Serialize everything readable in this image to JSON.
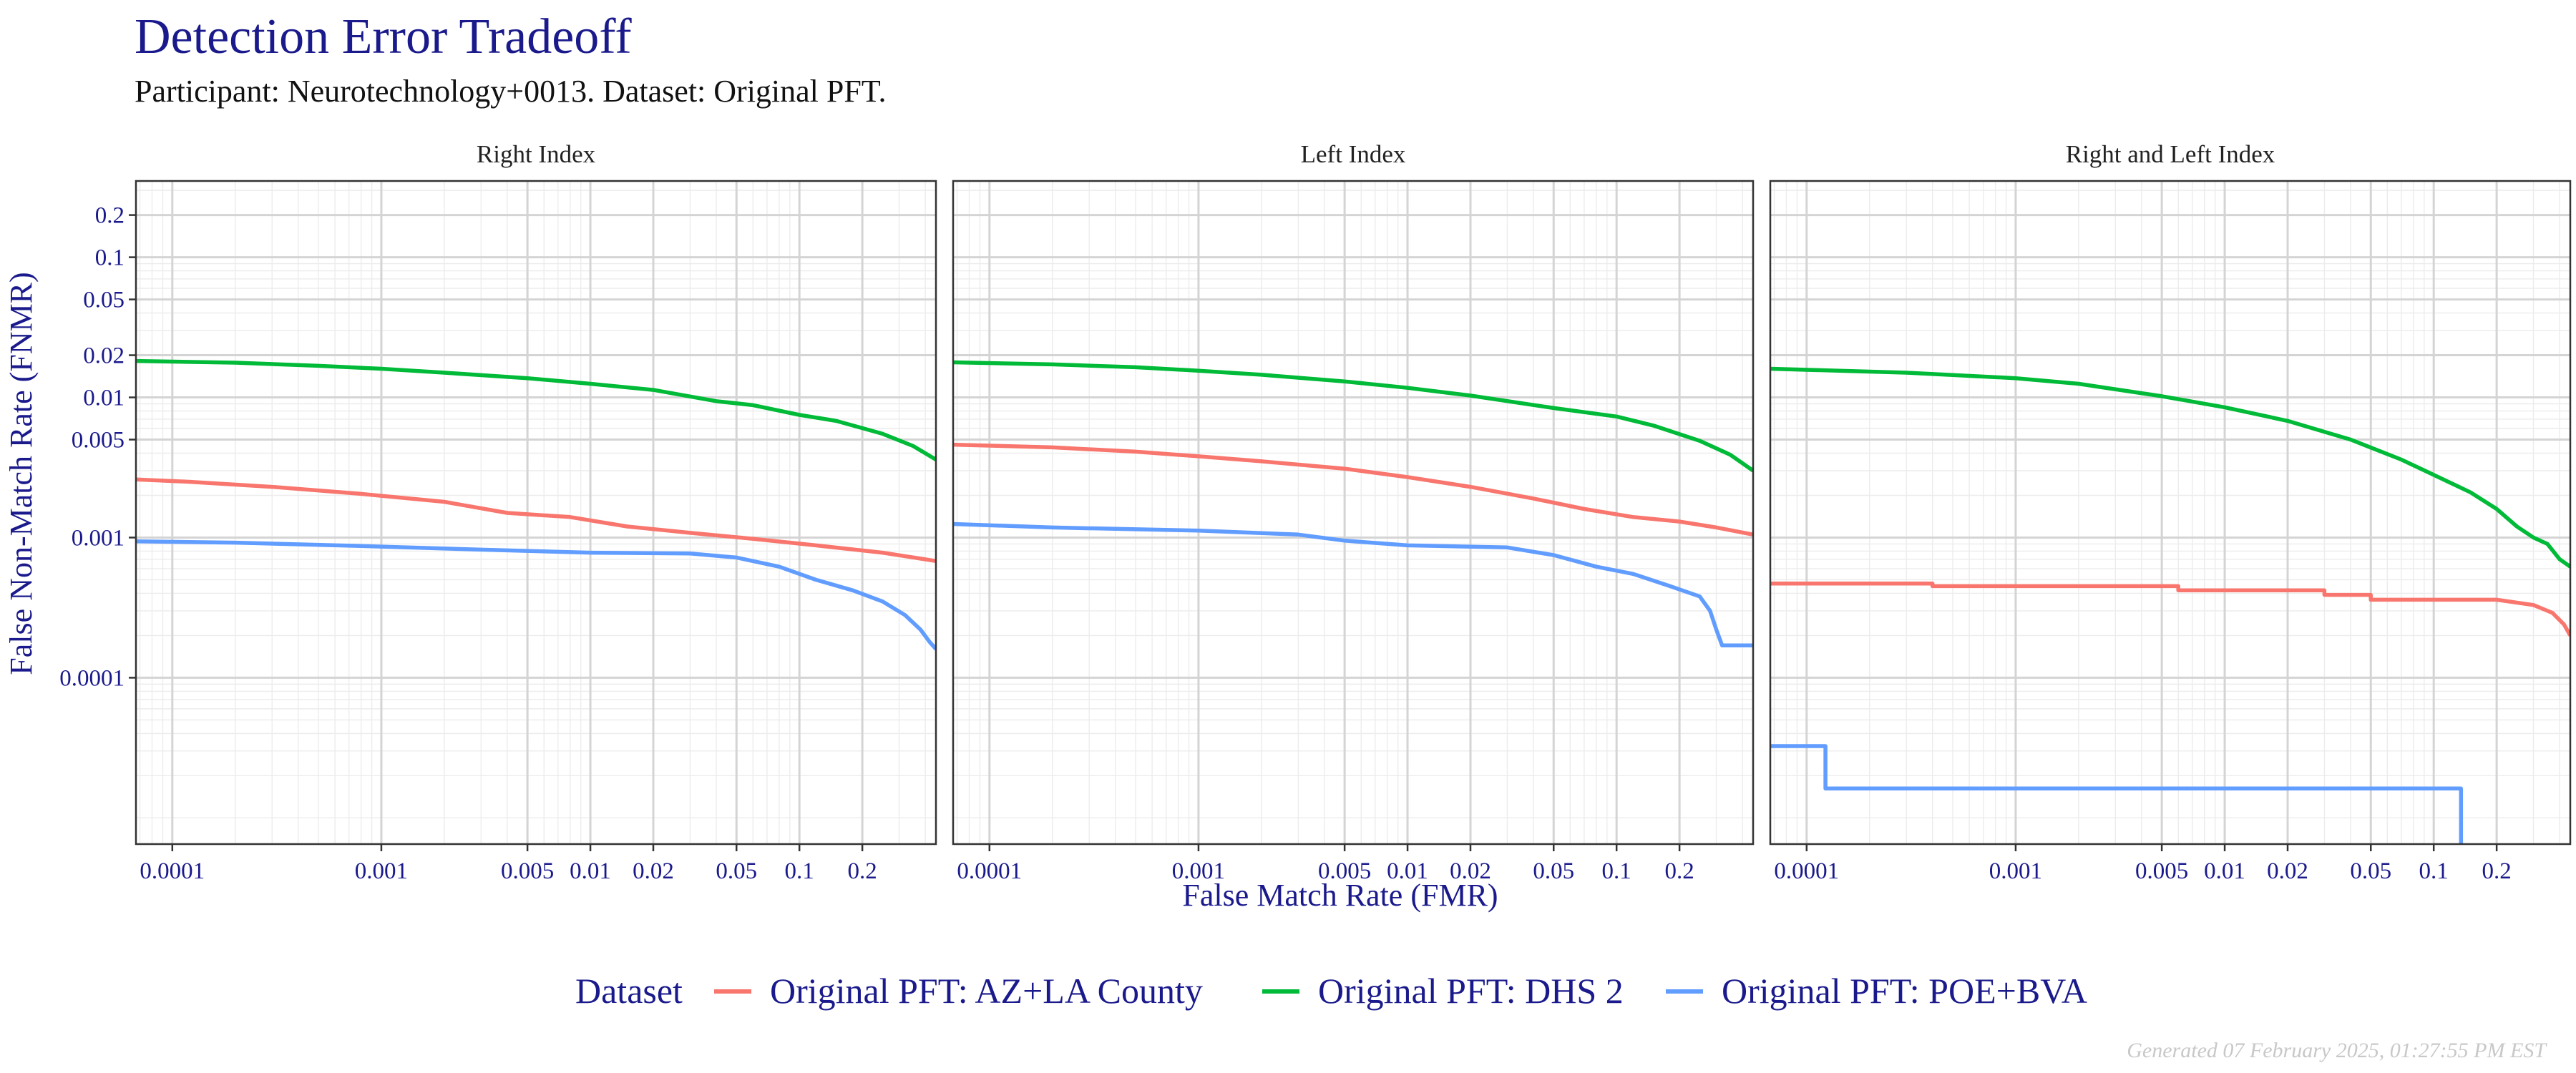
{
  "title": "Detection Error Tradeoff",
  "subtitle": "Participant: Neurotechnology+0013. Dataset: Original PFT.",
  "footer": "Generated 07 February 2025, 01:27:55 PM EST",
  "colors": {
    "title": "#1a1a8c",
    "AZ+LA County": "#F8766D",
    "DHS 2": "#00BA38",
    "POE+BVA": "#619CFF",
    "grid_major": "#d4d4d4",
    "grid_minor": "#ececec",
    "panel_border": "#333333"
  },
  "chart_data": {
    "type": "line",
    "xlabel": "False Match Rate (FMR)",
    "ylabel": "False Non-Match Rate (FNMR)",
    "x_scale": "log",
    "y_scale": "log",
    "xlim": [
      6.7e-05,
      0.45
    ],
    "ylim": [
      6.5e-06,
      0.35
    ],
    "x_ticks": [
      {
        "v": 0.0001,
        "label": "0.0001"
      },
      {
        "v": 0.001,
        "label": "0.001"
      },
      {
        "v": 0.005,
        "label": "0.005"
      },
      {
        "v": 0.01,
        "label": "0.01"
      },
      {
        "v": 0.02,
        "label": "0.02"
      },
      {
        "v": 0.05,
        "label": "0.05"
      },
      {
        "v": 0.1,
        "label": "0.1"
      },
      {
        "v": 0.2,
        "label": "0.2"
      }
    ],
    "y_ticks": [
      {
        "v": 0.0001,
        "label": "0.0001"
      },
      {
        "v": 0.001,
        "label": "0.001"
      },
      {
        "v": 0.005,
        "label": "0.005"
      },
      {
        "v": 0.01,
        "label": "0.01"
      },
      {
        "v": 0.02,
        "label": "0.02"
      },
      {
        "v": 0.05,
        "label": "0.05"
      },
      {
        "v": 0.1,
        "label": "0.1"
      },
      {
        "v": 0.2,
        "label": "0.2"
      }
    ],
    "grid": true,
    "legend": {
      "title": "Dataset",
      "position": "bottom"
    },
    "series_names": [
      "Original PFT: AZ+LA County",
      "Original PFT: DHS 2",
      "Original PFT: POE+BVA"
    ],
    "panels": [
      {
        "label": "Right Index",
        "series": [
          {
            "name": "Original PFT: AZ+LA County",
            "color_key": "AZ+LA County",
            "step": true,
            "points": [
              [
                6.7e-05,
                0.0026
              ],
              [
                0.00012,
                0.0025
              ],
              [
                0.0003,
                0.0023
              ],
              [
                0.0008,
                0.00205
              ],
              [
                0.002,
                0.0018
              ],
              [
                0.004,
                0.0015
              ],
              [
                0.008,
                0.0014
              ],
              [
                0.015,
                0.0012
              ],
              [
                0.03,
                0.00108
              ],
              [
                0.06,
                0.00098
              ],
              [
                0.12,
                0.00088
              ],
              [
                0.25,
                0.00078
              ],
              [
                0.45,
                0.00068
              ]
            ]
          },
          {
            "name": "Original PFT: DHS 2",
            "color_key": "DHS 2",
            "points": [
              [
                6.7e-05,
                0.0182
              ],
              [
                0.0002,
                0.0177
              ],
              [
                0.0005,
                0.0168
              ],
              [
                0.001,
                0.016
              ],
              [
                0.002,
                0.015
              ],
              [
                0.005,
                0.0137
              ],
              [
                0.01,
                0.0125
              ],
              [
                0.02,
                0.0113
              ],
              [
                0.04,
                0.0094
              ],
              [
                0.06,
                0.0088
              ],
              [
                0.1,
                0.0075
              ],
              [
                0.15,
                0.0068
              ],
              [
                0.25,
                0.0055
              ],
              [
                0.35,
                0.0045
              ],
              [
                0.45,
                0.0036
              ]
            ]
          },
          {
            "name": "Original PFT: POE+BVA",
            "color_key": "POE+BVA",
            "step": true,
            "points": [
              [
                6.7e-05,
                0.00094
              ],
              [
                0.0002,
                0.00092
              ],
              [
                0.0008,
                0.00087
              ],
              [
                0.003,
                0.00082
              ],
              [
                0.01,
                0.00078
              ],
              [
                0.03,
                0.00077
              ],
              [
                0.05,
                0.00072
              ],
              [
                0.08,
                0.00062
              ],
              [
                0.12,
                0.0005
              ],
              [
                0.18,
                0.00042
              ],
              [
                0.25,
                0.00035
              ],
              [
                0.32,
                0.00028
              ],
              [
                0.38,
                0.00022
              ],
              [
                0.42,
                0.00018
              ],
              [
                0.45,
                0.00016
              ]
            ]
          }
        ]
      },
      {
        "label": "Left Index",
        "series": [
          {
            "name": "Original PFT: AZ+LA County",
            "color_key": "AZ+LA County",
            "step": true,
            "points": [
              [
                6.7e-05,
                0.0046
              ],
              [
                0.0002,
                0.0044
              ],
              [
                0.0005,
                0.0041
              ],
              [
                0.001,
                0.0038
              ],
              [
                0.002,
                0.0035
              ],
              [
                0.005,
                0.0031
              ],
              [
                0.01,
                0.0027
              ],
              [
                0.02,
                0.0023
              ],
              [
                0.04,
                0.0019
              ],
              [
                0.07,
                0.0016
              ],
              [
                0.12,
                0.0014
              ],
              [
                0.2,
                0.0013
              ],
              [
                0.3,
                0.00118
              ],
              [
                0.45,
                0.00105
              ]
            ]
          },
          {
            "name": "Original PFT: DHS 2",
            "color_key": "DHS 2",
            "points": [
              [
                6.7e-05,
                0.0178
              ],
              [
                0.0002,
                0.0172
              ],
              [
                0.0005,
                0.0164
              ],
              [
                0.001,
                0.0155
              ],
              [
                0.002,
                0.0145
              ],
              [
                0.005,
                0.013
              ],
              [
                0.01,
                0.0117
              ],
              [
                0.02,
                0.0103
              ],
              [
                0.05,
                0.0084
              ],
              [
                0.1,
                0.0073
              ],
              [
                0.15,
                0.0063
              ],
              [
                0.25,
                0.0049
              ],
              [
                0.35,
                0.0039
              ],
              [
                0.45,
                0.003
              ]
            ]
          },
          {
            "name": "Original PFT: POE+BVA",
            "color_key": "POE+BVA",
            "step": true,
            "points": [
              [
                6.7e-05,
                0.00125
              ],
              [
                0.0002,
                0.00118
              ],
              [
                0.001,
                0.00112
              ],
              [
                0.003,
                0.00105
              ],
              [
                0.005,
                0.00095
              ],
              [
                0.01,
                0.00088
              ],
              [
                0.03,
                0.00085
              ],
              [
                0.05,
                0.00075
              ],
              [
                0.08,
                0.00062
              ],
              [
                0.12,
                0.00055
              ],
              [
                0.18,
                0.00045
              ],
              [
                0.25,
                0.00038
              ],
              [
                0.28,
                0.0003
              ],
              [
                0.3,
                0.00022
              ],
              [
                0.32,
                0.00017
              ],
              [
                0.45,
                0.00017
              ]
            ]
          }
        ]
      },
      {
        "label": "Right and Left Index",
        "series": [
          {
            "name": "Original PFT: AZ+LA County",
            "color_key": "AZ+LA County",
            "step": true,
            "points": [
              [
                6.7e-05,
                0.00047
              ],
              [
                0.0004,
                0.00047
              ],
              [
                0.0004,
                0.00045
              ],
              [
                0.006,
                0.00045
              ],
              [
                0.006,
                0.00042
              ],
              [
                0.03,
                0.00042
              ],
              [
                0.03,
                0.00039
              ],
              [
                0.05,
                0.00039
              ],
              [
                0.05,
                0.00036
              ],
              [
                0.2,
                0.00036
              ],
              [
                0.3,
                0.00033
              ],
              [
                0.37,
                0.00029
              ],
              [
                0.42,
                0.00024
              ],
              [
                0.45,
                0.0002
              ]
            ]
          },
          {
            "name": "Original PFT: DHS 2",
            "color_key": "DHS 2",
            "points": [
              [
                6.7e-05,
                0.016
              ],
              [
                0.0003,
                0.015
              ],
              [
                0.001,
                0.0137
              ],
              [
                0.002,
                0.0125
              ],
              [
                0.005,
                0.0102
              ],
              [
                0.01,
                0.0085
              ],
              [
                0.02,
                0.0068
              ],
              [
                0.04,
                0.005
              ],
              [
                0.07,
                0.0036
              ],
              [
                0.1,
                0.0028
              ],
              [
                0.15,
                0.0021
              ],
              [
                0.2,
                0.0016
              ],
              [
                0.25,
                0.0012
              ],
              [
                0.3,
                0.001
              ],
              [
                0.35,
                0.0009
              ],
              [
                0.4,
                0.0007
              ],
              [
                0.45,
                0.00062
              ]
            ]
          },
          {
            "name": "Original PFT: POE+BVA",
            "color_key": "POE+BVA",
            "step": true,
            "points": [
              [
                6.7e-05,
                3.25e-05
              ],
              [
                0.000123,
                3.25e-05
              ],
              [
                0.000123,
                1.62e-05
              ],
              [
                0.135,
                1.62e-05
              ],
              [
                0.135,
                6.5e-06
              ]
            ]
          }
        ]
      }
    ]
  }
}
